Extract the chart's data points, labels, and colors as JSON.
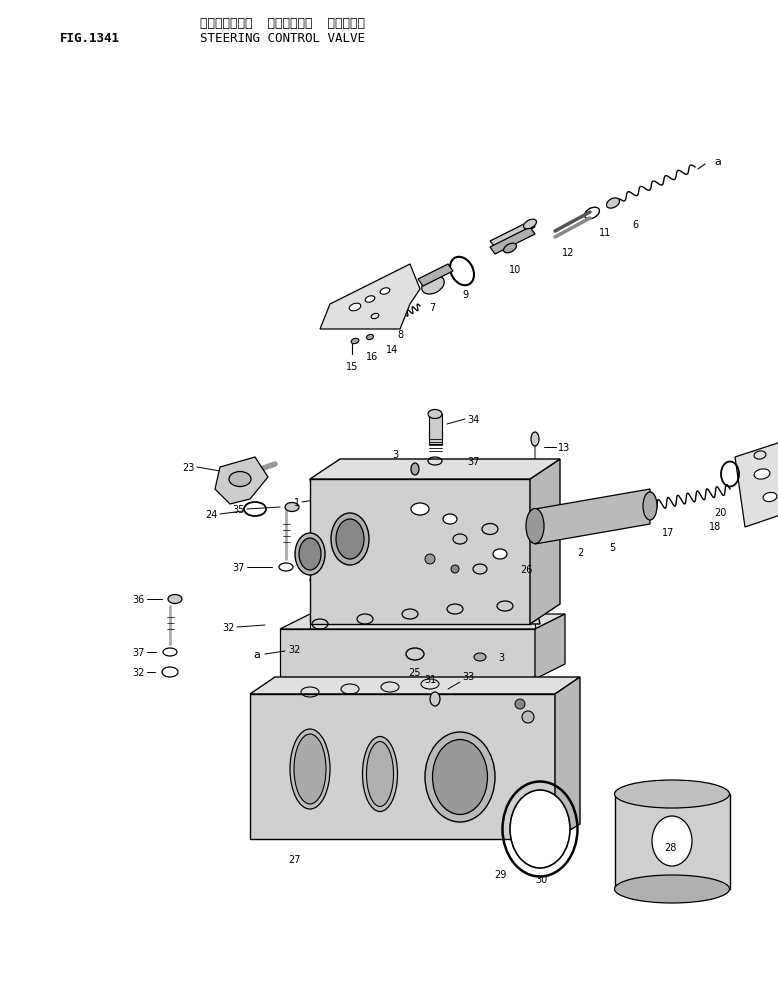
{
  "title_jp": "ステアリング゛  コントロール  ハ゛ルフ゛",
  "title_en": "STEERING CONTROL VALVE",
  "fig_label": "FIG.1341",
  "bg_color": "#ffffff",
  "line_color": "#000000",
  "figsize": [
    7.78,
    9.87
  ],
  "dpi": 100
}
